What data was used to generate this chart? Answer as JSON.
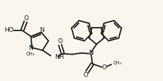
{
  "background_color": "#faf6ee",
  "line_color": "#1a1a1a",
  "line_width": 1.3,
  "font_size": 6.5,
  "figsize": [
    2.36,
    1.17
  ],
  "dpi": 100,
  "xlim": [
    0,
    236
  ],
  "ylim": [
    0,
    117
  ]
}
